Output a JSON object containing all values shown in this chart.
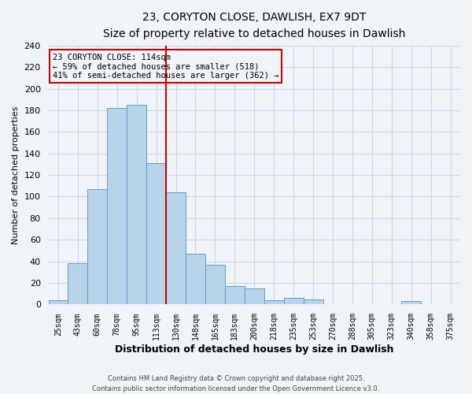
{
  "title": "23, CORYTON CLOSE, DAWLISH, EX7 9DT",
  "subtitle": "Size of property relative to detached houses in Dawlish",
  "xlabel": "Distribution of detached houses by size in Dawlish",
  "ylabel": "Number of detached properties",
  "categories": [
    "25sqm",
    "43sqm",
    "60sqm",
    "78sqm",
    "95sqm",
    "113sqm",
    "130sqm",
    "148sqm",
    "165sqm",
    "183sqm",
    "200sqm",
    "218sqm",
    "235sqm",
    "253sqm",
    "270sqm",
    "288sqm",
    "305sqm",
    "323sqm",
    "340sqm",
    "358sqm",
    "375sqm"
  ],
  "values": [
    4,
    38,
    107,
    182,
    185,
    131,
    104,
    47,
    37,
    17,
    15,
    4,
    6,
    5,
    0,
    0,
    0,
    0,
    3,
    0,
    0
  ],
  "bar_color": "#b8d4e8",
  "bar_edge_color": "#6699cc",
  "vline_color": "#cc0000",
  "ylim": [
    0,
    240
  ],
  "yticks": [
    0,
    20,
    40,
    60,
    80,
    100,
    120,
    140,
    160,
    180,
    200,
    220,
    240
  ],
  "annotation_title": "23 CORYTON CLOSE: 114sqm",
  "annotation_line1": "← 59% of detached houses are smaller (518)",
  "annotation_line2": "41% of semi-detached houses are larger (362) →",
  "footer1": "Contains HM Land Registry data © Crown copyright and database right 2025.",
  "footer2": "Contains public sector information licensed under the Open Government Licence v3.0.",
  "bg_color": "#f0f4f8",
  "grid_color": "#c8d8e8"
}
